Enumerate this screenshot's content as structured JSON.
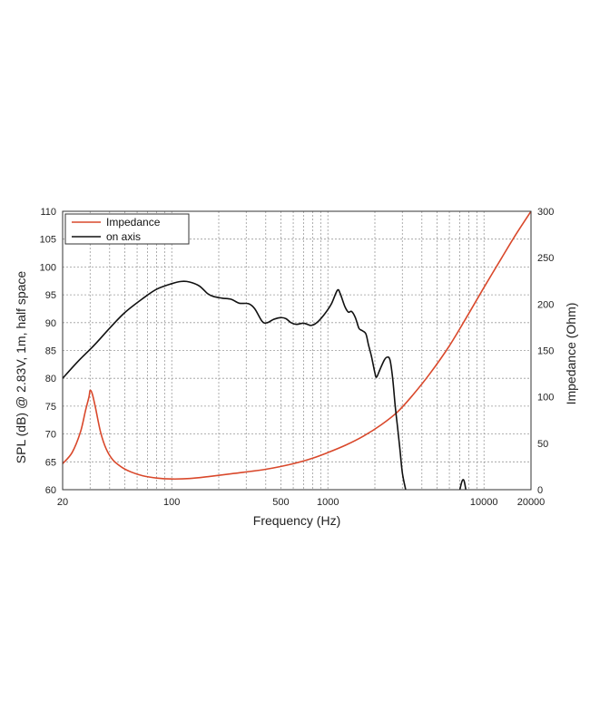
{
  "chart_data": {
    "type": "line",
    "title": "",
    "xlabel": "Frequency (Hz)",
    "ylabel": "SPL (dB) @ 2.83V, 1m, half space",
    "y2label": "Impedance (Ohm)",
    "xscale": "log",
    "xlim": [
      20,
      20000
    ],
    "ylim": [
      60,
      110
    ],
    "y2lim": [
      0,
      300
    ],
    "grid": true,
    "legend_position": "top-left",
    "x_ticks": [
      {
        "value": 20,
        "label": "20"
      },
      {
        "value": 100,
        "label": "100"
      },
      {
        "value": 500,
        "label": "500"
      },
      {
        "value": 1000,
        "label": "1000"
      },
      {
        "value": 10000,
        "label": "10000"
      },
      {
        "value": 20000,
        "label": "20000"
      }
    ],
    "y_ticks": [
      {
        "value": 60,
        "label": "60"
      },
      {
        "value": 65,
        "label": "65"
      },
      {
        "value": 70,
        "label": "70"
      },
      {
        "value": 75,
        "label": "75"
      },
      {
        "value": 80,
        "label": "80"
      },
      {
        "value": 85,
        "label": "85"
      },
      {
        "value": 90,
        "label": "90"
      },
      {
        "value": 95,
        "label": "95"
      },
      {
        "value": 100,
        "label": "100"
      },
      {
        "value": 105,
        "label": "105"
      },
      {
        "value": 110,
        "label": "110"
      }
    ],
    "y2_ticks": [
      {
        "value": 0,
        "label": "0"
      },
      {
        "value": 50,
        "label": "50"
      },
      {
        "value": 100,
        "label": "100"
      },
      {
        "value": 150,
        "label": "150"
      },
      {
        "value": 200,
        "label": "200"
      },
      {
        "value": 250,
        "label": "250"
      },
      {
        "value": 300,
        "label": "300"
      }
    ],
    "series": [
      {
        "name": "Impedance",
        "axis": "right",
        "color": "#d9482b",
        "points": [
          [
            20,
            28
          ],
          [
            23,
            40
          ],
          [
            26,
            62
          ],
          [
            28,
            85
          ],
          [
            29.5,
            100
          ],
          [
            30,
            107
          ],
          [
            31,
            103
          ],
          [
            32.5,
            88
          ],
          [
            35,
            62
          ],
          [
            38,
            44
          ],
          [
            42,
            32
          ],
          [
            48,
            24
          ],
          [
            55,
            19
          ],
          [
            65,
            15
          ],
          [
            80,
            12.5
          ],
          [
            100,
            11.5
          ],
          [
            130,
            12
          ],
          [
            170,
            14
          ],
          [
            250,
            17.5
          ],
          [
            400,
            22
          ],
          [
            600,
            28
          ],
          [
            800,
            34
          ],
          [
            1000,
            40
          ],
          [
            1300,
            48
          ],
          [
            1700,
            58
          ],
          [
            2200,
            70
          ],
          [
            2800,
            84
          ],
          [
            3500,
            102
          ],
          [
            4500,
            125
          ],
          [
            6000,
            155
          ],
          [
            8000,
            190
          ],
          [
            10000,
            218
          ],
          [
            13000,
            250
          ],
          [
            16000,
            275
          ],
          [
            20000,
            300
          ]
        ]
      },
      {
        "name": "on axis",
        "axis": "left",
        "color": "#111111",
        "segments": [
          [
            [
              20,
              80
            ],
            [
              25,
              83
            ],
            [
              32,
              86
            ],
            [
              40,
              89
            ],
            [
              50,
              91.8
            ],
            [
              65,
              94.3
            ],
            [
              80,
              96
            ],
            [
              100,
              97
            ],
            [
              115,
              97.4
            ],
            [
              130,
              97.3
            ],
            [
              150,
              96.6
            ],
            [
              170,
              95.2
            ],
            [
              185,
              94.7
            ],
            [
              210,
              94.4
            ],
            [
              240,
              94.2
            ],
            [
              270,
              93.5
            ],
            [
              310,
              93.4
            ],
            [
              340,
              92.5
            ],
            [
              380,
              90.2
            ],
            [
              410,
              90.0
            ],
            [
              450,
              90.6
            ],
            [
              500,
              90.9
            ],
            [
              540,
              90.7
            ],
            [
              580,
              90.0
            ],
            [
              630,
              89.7
            ],
            [
              700,
              89.9
            ],
            [
              780,
              89.5
            ],
            [
              850,
              90.0
            ],
            [
              950,
              91.5
            ],
            [
              1050,
              93.3
            ],
            [
              1150,
              95.8
            ],
            [
              1200,
              95.2
            ],
            [
              1280,
              93.0
            ],
            [
              1350,
              91.9
            ],
            [
              1420,
              92.0
            ],
            [
              1500,
              90.9
            ],
            [
              1580,
              89.0
            ],
            [
              1650,
              88.6
            ],
            [
              1750,
              88.0
            ],
            [
              1820,
              86.0
            ],
            [
              1900,
              84.0
            ],
            [
              2000,
              81.0
            ],
            [
              2050,
              80.2
            ],
            [
              2150,
              81.5
            ],
            [
              2300,
              83.3
            ],
            [
              2400,
              83.8
            ],
            [
              2500,
              83.3
            ],
            [
              2600,
              80.0
            ],
            [
              2700,
              75.0
            ],
            [
              2800,
              71.0
            ],
            [
              2900,
              67.0
            ],
            [
              3000,
              63.0
            ],
            [
              3150,
              60.0
            ]
          ],
          [
            [
              7000,
              60.0
            ],
            [
              7250,
              61.6
            ],
            [
              7450,
              61.6
            ],
            [
              7650,
              60.0
            ]
          ]
        ]
      }
    ]
  }
}
